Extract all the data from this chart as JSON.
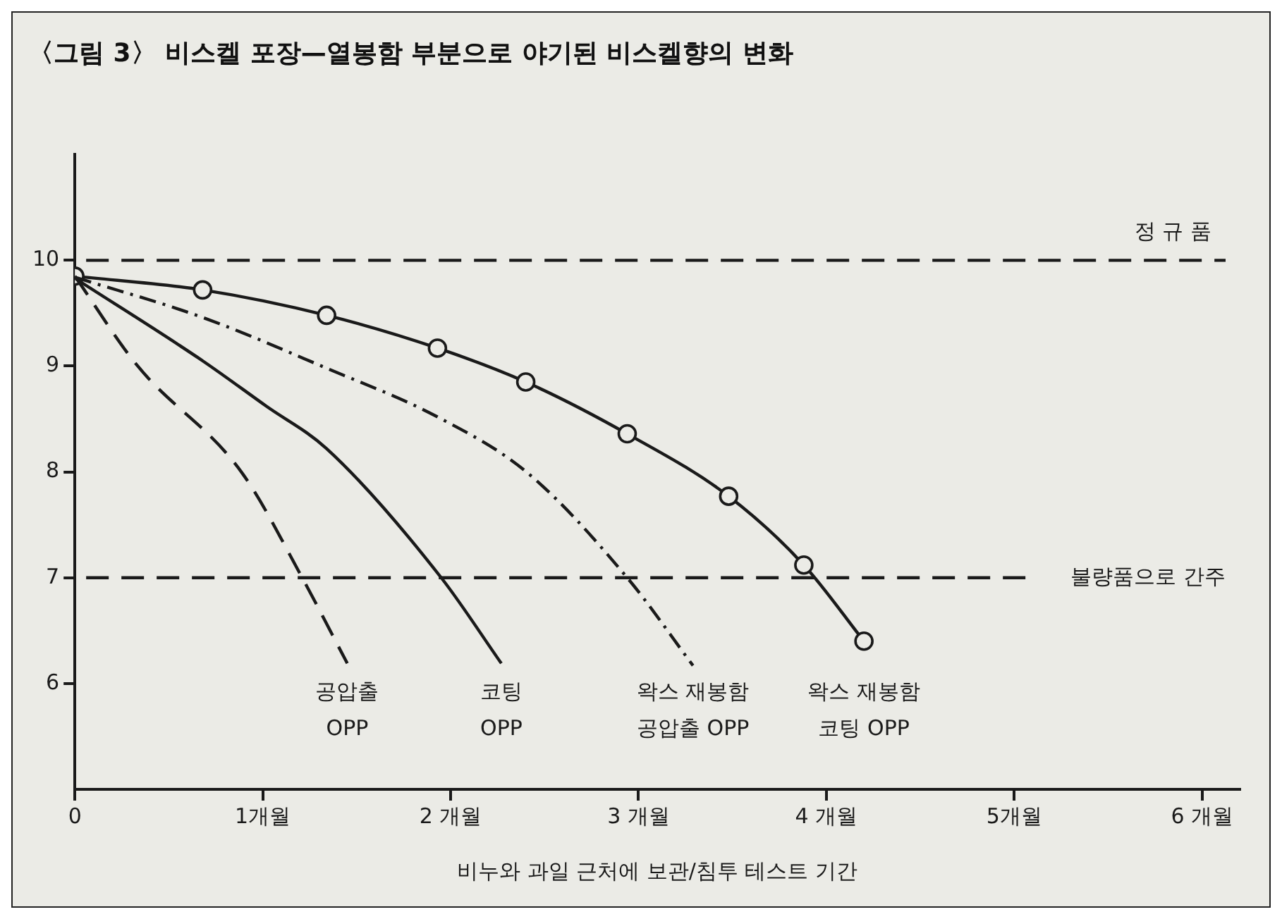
{
  "chart_data": {
    "type": "line",
    "title": "〈그림 3〉 비스켈 포장—열봉함 부분으로 야기된 비스켈향의 변화",
    "xlabel": "비누와 과일 근처에 보관/침투 테스트 기간",
    "xlim": [
      0,
      6.2
    ],
    "xticks": [
      0,
      {
        "value": 1,
        "label": "1개월"
      },
      {
        "value": 2,
        "label": "2 개월"
      },
      {
        "value": 3,
        "label": "3 개월"
      },
      {
        "value": 4,
        "label": "4 개월"
      },
      {
        "value": 5,
        "label": "5개월"
      },
      {
        "value": 6,
        "label": "6 개월"
      }
    ],
    "ylim": [
      5,
      11
    ],
    "yticks": [
      6,
      7,
      8,
      9,
      10
    ],
    "grid": false,
    "legend": false,
    "series": [
      {
        "name": "공압출 OPP",
        "color": "#1a1a1a",
        "line_style": "dashed",
        "marker": "none",
        "x": [
          0,
          0.33,
          0.89,
          1.21,
          1.45
        ],
        "values": [
          9.85,
          9.01,
          7.99,
          7.0,
          6.19
        ]
      },
      {
        "name": "코팅 OPP",
        "color": "#1a1a1a",
        "line_style": "solid",
        "marker": "none",
        "x": [
          0,
          0.68,
          1.02,
          1.34,
          1.95,
          2.27
        ],
        "values": [
          9.83,
          9.05,
          8.62,
          8.22,
          7.0,
          6.19
        ]
      },
      {
        "name": "왁스 재봉함 공압출 OPP",
        "color": "#1a1a1a",
        "line_style": "dashdot",
        "marker": "none",
        "x": [
          0,
          0.68,
          1.34,
          1.93,
          2.41,
          2.94,
          3.29
        ],
        "values": [
          9.84,
          9.46,
          8.98,
          8.52,
          7.99,
          7.0,
          6.17
        ]
      },
      {
        "name": "왁스 재봉함 코팅 OPP",
        "color": "#1a1a1a",
        "line_style": "solid",
        "marker": "circle",
        "x": [
          0,
          0.68,
          1.34,
          1.93,
          2.4,
          2.94,
          3.48,
          3.88,
          4.2
        ],
        "values": [
          9.85,
          9.72,
          9.48,
          9.17,
          8.85,
          8.36,
          7.77,
          7.12,
          6.4
        ]
      }
    ],
    "ref_lines": [
      {
        "axis": "y",
        "value": 10,
        "label": "정 규 품",
        "line_style": "dashed",
        "color": "#1a1a1a"
      },
      {
        "axis": "y",
        "value": 7,
        "label": "불량품으로 간주",
        "line_style": "dashed",
        "color": "#1a1a1a"
      }
    ]
  }
}
